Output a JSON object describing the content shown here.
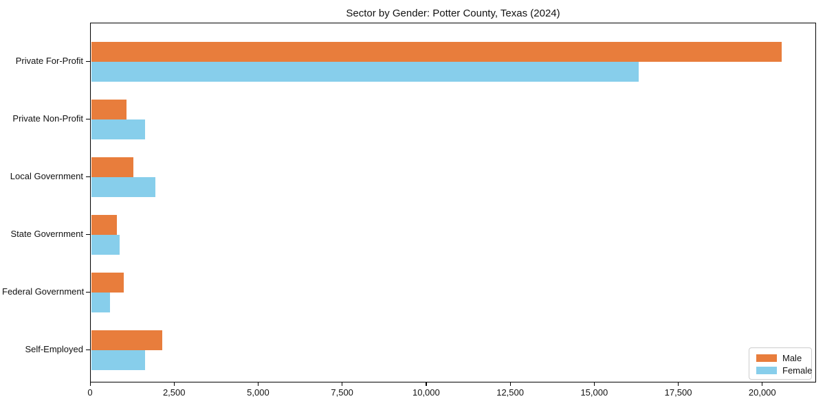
{
  "chart_data": {
    "type": "bar",
    "orientation": "horizontal",
    "title": "Sector by Gender: Potter County, Texas (2024)",
    "categories": [
      "Private For-Profit",
      "Private Non-Profit",
      "Local Government",
      "State Government",
      "Federal Government",
      "Self-Employed"
    ],
    "series": [
      {
        "name": "Male",
        "color": "#E87D3C",
        "values": [
          20550,
          1060,
          1270,
          780,
          980,
          2130
        ]
      },
      {
        "name": "Female",
        "color": "#87CEEB",
        "values": [
          16300,
          1620,
          1920,
          860,
          570,
          1620
        ]
      }
    ],
    "xlim": [
      0,
      21600
    ],
    "x_ticks": [
      0,
      2500,
      5000,
      7500,
      10000,
      12500,
      15000,
      17500,
      20000
    ],
    "x_tick_labels": [
      "0",
      "2,500",
      "5,000",
      "7,500",
      "10,000",
      "12,500",
      "15,000",
      "17,500",
      "20,000"
    ],
    "xlabel": "",
    "ylabel": "",
    "grid": false,
    "legend_position": "lower right",
    "colors": {
      "male": "#E87D3C",
      "female": "#87CEEB",
      "axis": "#000000",
      "background": "#ffffff"
    }
  }
}
